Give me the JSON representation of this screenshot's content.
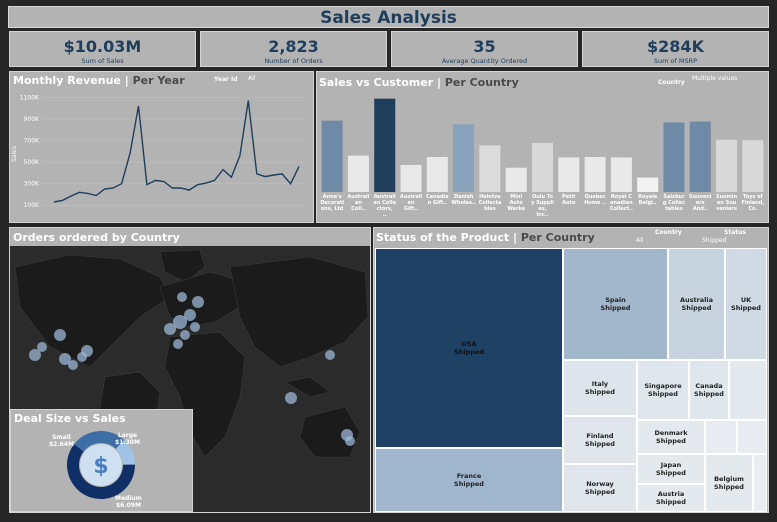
{
  "header": {
    "title": "Sales Analysis"
  },
  "kpis": [
    {
      "value": "$10.03M",
      "label": "Sum of Sales"
    },
    {
      "value": "2,823",
      "label": "Number of Orders"
    },
    {
      "value": "35",
      "label": "Average Quantity Ordered"
    },
    {
      "value": "$284K",
      "label": "Sum of MSRP"
    }
  ],
  "monthly_revenue": {
    "title": "Monthly Revenue",
    "subtitle": "Per Year",
    "filter_label": "Year Id",
    "filter_value": "All",
    "line_color": "#1f3e5c"
  },
  "sales_vs_customer": {
    "title": "Sales vs Customer",
    "subtitle": "Per Country",
    "filter_label": "Country",
    "filter_value": "Multiple values"
  },
  "orders_by_country": {
    "title": "Orders ordered by Country"
  },
  "deal_size": {
    "title": "Deal Size vs Sales",
    "slices": [
      {
        "name": "Small",
        "value_label": "$2.64M",
        "value": 2.64,
        "color": "#3e6ea6"
      },
      {
        "name": "Large",
        "value_label": "$1.30M",
        "value": 1.3,
        "color": "#9fc4e8"
      },
      {
        "name": "Medium",
        "value_label": "$6.09M",
        "value": 6.09,
        "color": "#0f2f66"
      }
    ],
    "center_symbol": "$"
  },
  "status_product": {
    "title": "Status of the Product",
    "subtitle": "Per Country",
    "filter1_label": "Country",
    "filter1_value": "All",
    "filter2_label": "Status",
    "filter2_value": "Shipped",
    "cells": [
      {
        "country": "USA",
        "status": "Shipped"
      },
      {
        "country": "France",
        "status": "Shipped"
      },
      {
        "country": "Spain",
        "status": "Shipped"
      },
      {
        "country": "Australia",
        "status": "Shipped"
      },
      {
        "country": "UK",
        "status": "Shipped"
      },
      {
        "country": "Italy",
        "status": "Shipped"
      },
      {
        "country": "Singapore",
        "status": "Shipped"
      },
      {
        "country": "Canada",
        "status": "Shipped"
      },
      {
        "country": "Finland",
        "status": "Shipped"
      },
      {
        "country": "Denmark",
        "status": "Shipped"
      },
      {
        "country": "Japan",
        "status": "Shipped"
      },
      {
        "country": "Belgium",
        "status": "Shipped"
      },
      {
        "country": "Norway",
        "status": "Shipped"
      },
      {
        "country": "Austria",
        "status": "Shipped"
      }
    ]
  },
  "chart_data": [
    {
      "type": "line",
      "title": "Monthly Revenue",
      "xlabel": "",
      "ylabel": "Sales",
      "ylim": [
        0,
        1150
      ],
      "yticks": [
        "100K",
        "300K",
        "500K",
        "700K",
        "900K",
        "1100K"
      ],
      "y_tick_values": [
        100,
        300,
        500,
        700,
        900,
        1100
      ],
      "series": [
        {
          "values": [
            130,
            145,
            185,
            220,
            210,
            190,
            250,
            260,
            300,
            580,
            1020,
            290,
            330,
            320,
            260,
            260,
            240,
            290,
            305,
            330,
            430,
            360,
            560,
            1070,
            390,
            365,
            380,
            390,
            300,
            460
          ]
        }
      ]
    },
    {
      "type": "bar",
      "title": "Sales vs Customer",
      "categories": [
        "Anna's Decorati ons, Ltd",
        "Australi an Coll..",
        "Australi an Colle ctors, ..",
        "Australi an Gift..",
        "Canadia n Gift..",
        "Danish Wholes..",
        "Heintze Collecta bles",
        "Mini Auto Werke",
        "Oulu To y Suppli es, Inc..",
        "Petit Auto",
        "Quebec Home ..",
        "Royal C anadian Collect..",
        "Royale Belgi..",
        "Salzbur g Collec tables",
        "Souveni ers And..",
        "Suomin en Sou veniers",
        "Toys of Finland, Co."
      ],
      "values": [
        153,
        78,
        200,
        58,
        75,
        145,
        100,
        52,
        105,
        74,
        75,
        74,
        31,
        149,
        151,
        112,
        111
      ],
      "colors": [
        "#6f8aa6",
        "#e9e9e9",
        "#1f3e5c",
        "#e9e9e9",
        "#e9e9e9",
        "#8aa3bd",
        "#dcdcdc",
        "#e9e9e9",
        "#d9d9d9",
        "#e9e9e9",
        "#e9e9e9",
        "#e9e9e9",
        "#f2f2f2",
        "#6f8aa6",
        "#6f8aa6",
        "#d9d9d9",
        "#d9d9d9"
      ],
      "ylim": [
        0,
        210
      ]
    },
    {
      "type": "pie",
      "title": "Deal Size vs Sales",
      "categories": [
        "Small",
        "Large",
        "Medium"
      ],
      "values": [
        2.64,
        1.3,
        6.09
      ]
    }
  ]
}
